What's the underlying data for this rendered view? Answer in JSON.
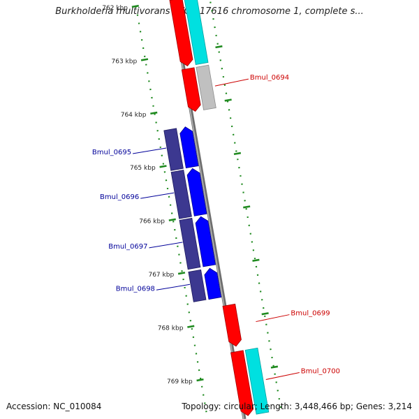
{
  "title": "Burkholderia multivorans ATCC 17616 chromosome 1, complete s...",
  "footer": {
    "accession": "Accession: NC_010084",
    "summary": "Topology: circular; Length: 3,448,466 bp; Genes: 3,214"
  },
  "colors": {
    "forward_gene": "#ff0000",
    "forward_product": "#00e0e0",
    "forward_pseudo_product": "#c0c0c0",
    "reverse_gene": "#0000ff",
    "reverse_product": "#3c3890",
    "backbone": "#888888",
    "tick": "#1f8a1f",
    "forward_label": "#cc0000",
    "reverse_label": "#000099"
  },
  "ticks": [
    {
      "label": "762 kbp",
      "kbp": 762
    },
    {
      "label": "763 kbp",
      "kbp": 763
    },
    {
      "label": "764 kbp",
      "kbp": 764
    },
    {
      "label": "765 kbp",
      "kbp": 765
    },
    {
      "label": "766 kbp",
      "kbp": 766
    },
    {
      "label": "767 kbp",
      "kbp": 767
    },
    {
      "label": "768 kbp",
      "kbp": 768
    },
    {
      "label": "769 kbp",
      "kbp": 769
    }
  ],
  "genes": [
    {
      "id": "g0693",
      "strand": "forward",
      "start_kbp": 762.0,
      "end_kbp": 763.25,
      "product": "cyan",
      "label": ""
    },
    {
      "id": "g0694",
      "strand": "forward",
      "start_kbp": 763.3,
      "end_kbp": 764.1,
      "product": "gray",
      "label": "Bmul_0694"
    },
    {
      "id": "g0695",
      "strand": "reverse",
      "start_kbp": 764.35,
      "end_kbp": 765.1,
      "product": "purple",
      "label": "Bmul_0695"
    },
    {
      "id": "g0696",
      "strand": "reverse",
      "start_kbp": 765.13,
      "end_kbp": 766.0,
      "product": "purple",
      "label": "Bmul_0696"
    },
    {
      "id": "g0697",
      "strand": "reverse",
      "start_kbp": 766.03,
      "end_kbp": 766.95,
      "product": "purple",
      "label": "Bmul_0697"
    },
    {
      "id": "g0698",
      "strand": "reverse",
      "start_kbp": 767.0,
      "end_kbp": 767.56,
      "product": "purple",
      "label": "Bmul_0698"
    },
    {
      "id": "g0699",
      "strand": "forward",
      "start_kbp": 767.73,
      "end_kbp": 768.5,
      "product": "none",
      "label": "Bmul_0699"
    },
    {
      "id": "g0700",
      "strand": "forward",
      "start_kbp": 768.6,
      "end_kbp": 769.8,
      "product": "cyan",
      "label": "Bmul_0700"
    }
  ]
}
